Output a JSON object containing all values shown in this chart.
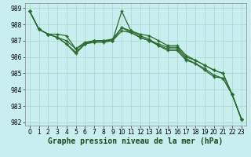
{
  "bg_color": "#c8eef0",
  "grid_color": "#a8d8c8",
  "line_color": "#2d6a2d",
  "marker_color": "#2d6a2d",
  "xlabel": "Graphe pression niveau de la mer (hPa)",
  "xlabel_fontsize": 7,
  "tick_fontsize": 5.5,
  "ylim": [
    981.8,
    989.3
  ],
  "yticks": [
    982,
    983,
    984,
    985,
    986,
    987,
    988,
    989
  ],
  "xlim": [
    -0.5,
    23.5
  ],
  "xticks": [
    0,
    1,
    2,
    3,
    4,
    5,
    6,
    7,
    8,
    9,
    10,
    11,
    12,
    13,
    14,
    15,
    16,
    17,
    18,
    19,
    20,
    21,
    22,
    23
  ],
  "series": [
    [
      988.8,
      987.7,
      987.4,
      987.4,
      987.3,
      986.5,
      986.8,
      987.0,
      987.0,
      987.0,
      987.8,
      987.6,
      987.4,
      987.3,
      987.0,
      986.7,
      986.7,
      986.1,
      985.8,
      985.5,
      985.2,
      985.0,
      983.7,
      982.2
    ],
    [
      988.8,
      987.7,
      987.4,
      987.2,
      987.0,
      986.5,
      986.9,
      987.0,
      987.0,
      987.0,
      987.6,
      987.5,
      987.2,
      987.0,
      986.7,
      986.4,
      986.4,
      985.8,
      985.6,
      985.2,
      984.8,
      984.7,
      983.7,
      982.2
    ],
    [
      988.8,
      987.7,
      987.4,
      987.2,
      986.8,
      986.2,
      986.8,
      987.0,
      987.0,
      987.1,
      987.8,
      987.5,
      987.2,
      987.0,
      986.8,
      986.6,
      986.6,
      986.0,
      985.8,
      985.5,
      985.2,
      985.0,
      983.7,
      982.2
    ],
    [
      988.8,
      987.7,
      987.4,
      987.2,
      986.8,
      986.3,
      986.8,
      986.9,
      986.9,
      987.0,
      988.8,
      987.6,
      987.3,
      987.1,
      986.7,
      986.5,
      986.5,
      985.9,
      985.6,
      985.3,
      984.9,
      984.7,
      983.7,
      982.2
    ]
  ],
  "marker_size": 3.0,
  "line_width": 0.9
}
